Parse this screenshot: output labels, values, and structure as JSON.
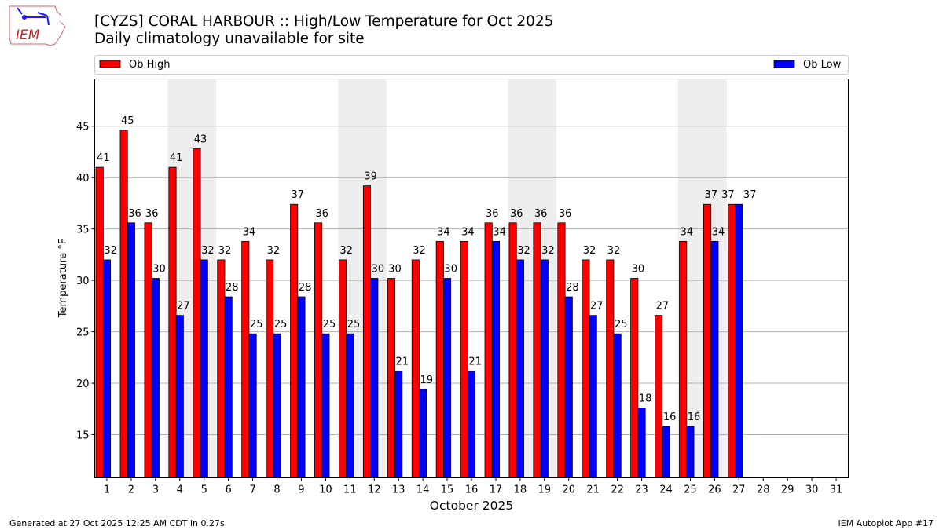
{
  "header": {
    "logo_text": "IEM",
    "title_line1": "[CYZS] CORAL HARBOUR :: High/Low Temperature for Oct 2025",
    "title_line2": "Daily climatology unavailable for site"
  },
  "footer": {
    "generated": "Generated at 27 Oct 2025 12:25 AM CDT in 0.27s",
    "app": "IEM Autoplot App #17"
  },
  "chart_data": {
    "type": "bar",
    "title": "[CYZS] CORAL HARBOUR :: High/Low Temperature for Oct 2025",
    "xlabel": "October 2025",
    "ylabel": "Temperature °F",
    "xlim": [
      0.5,
      31.5
    ],
    "ylim": [
      10.8,
      49.6
    ],
    "yticks": [
      15,
      20,
      25,
      30,
      35,
      40,
      45
    ],
    "xticks": [
      1,
      2,
      3,
      4,
      5,
      6,
      7,
      8,
      9,
      10,
      11,
      12,
      13,
      14,
      15,
      16,
      17,
      18,
      19,
      20,
      21,
      22,
      23,
      24,
      25,
      26,
      27,
      28,
      29,
      30,
      31
    ],
    "grid": "horizontal",
    "legend_placement": "top, above plot",
    "weekend_bands": [
      [
        3.5,
        5.5
      ],
      [
        10.5,
        12.5
      ],
      [
        17.5,
        19.5
      ],
      [
        24.5,
        26.5
      ]
    ],
    "colors": {
      "high": "#ff0000",
      "low": "#0000ff",
      "band": "#eeeeee",
      "grid": "#b0b0b0"
    },
    "days": [
      1,
      2,
      3,
      4,
      5,
      6,
      7,
      8,
      9,
      10,
      11,
      12,
      13,
      14,
      15,
      16,
      17,
      18,
      19,
      20,
      21,
      22,
      23,
      24,
      25,
      26,
      27
    ],
    "series": [
      {
        "name": "Ob High",
        "values": [
          41.0,
          44.6,
          35.6,
          41.0,
          42.8,
          32.0,
          33.8,
          32.0,
          37.4,
          35.6,
          32.0,
          39.2,
          30.2,
          32.0,
          33.8,
          33.8,
          35.6,
          35.6,
          35.6,
          35.6,
          32.0,
          32.0,
          30.2,
          26.6,
          33.8,
          37.4,
          37.4
        ]
      },
      {
        "name": "Ob Low",
        "values": [
          32.0,
          35.6,
          30.2,
          26.6,
          32.0,
          28.4,
          24.8,
          24.8,
          28.4,
          24.8,
          24.8,
          30.2,
          21.2,
          19.4,
          30.2,
          21.2,
          33.8,
          32.0,
          32.0,
          28.4,
          26.6,
          24.8,
          17.6,
          15.8,
          15.8,
          33.8,
          37.4
        ]
      }
    ]
  }
}
